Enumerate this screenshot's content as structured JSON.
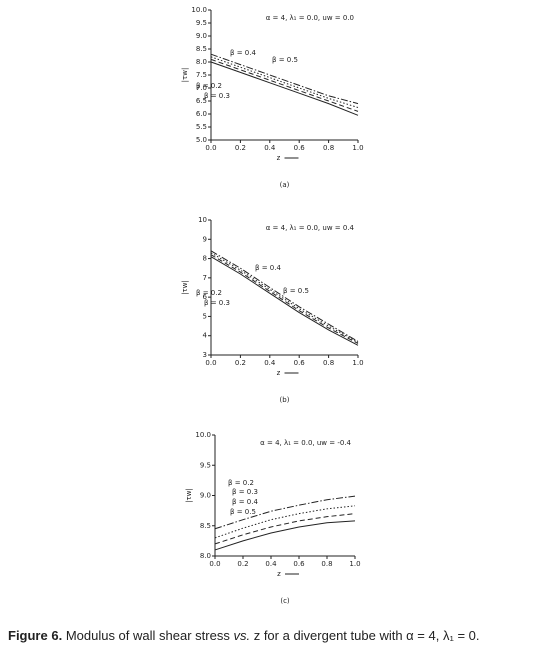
{
  "chart_data": [
    {
      "type": "line",
      "title": "α = 4, λ₁ = 0.0, uw = 0.0",
      "panel_label": "(a)",
      "x_label": "z",
      "y_label": "|τw|",
      "x": [
        0,
        0.2,
        0.4,
        0.6,
        0.8,
        1.0
      ],
      "xlim": [
        0,
        1
      ],
      "xticks": [
        {
          "value": 0,
          "label": "0.0"
        },
        0.2,
        0.4,
        0.6,
        0.8,
        {
          "value": 1,
          "label": "1.0"
        }
      ],
      "ylim": [
        5,
        10
      ],
      "yticks": [
        {
          "value": 5,
          "label": "5.0"
        },
        5.5,
        {
          "value": 6,
          "label": "6.0"
        },
        6.5,
        {
          "value": 7,
          "label": "7.0"
        },
        7.5,
        {
          "value": 8,
          "label": "8.0"
        },
        8.5,
        {
          "value": 9,
          "label": "9.0"
        },
        9.5,
        {
          "value": 10,
          "label": "10.0"
        }
      ],
      "series": [
        {
          "name": "β = 0.2",
          "color": "#222222",
          "values": [
            8.0,
            7.6,
            7.2,
            6.8,
            6.4,
            5.95
          ]
        },
        {
          "name": "β = 0.3",
          "color": "#222222",
          "values": [
            8.1,
            7.7,
            7.3,
            6.9,
            6.5,
            6.1
          ]
        },
        {
          "name": "β = 0.4",
          "color": "#222222",
          "values": [
            8.2,
            7.8,
            7.4,
            7.0,
            6.6,
            6.25
          ]
        },
        {
          "name": "β = 0.5",
          "color": "#222222",
          "values": [
            8.3,
            7.9,
            7.5,
            7.1,
            6.7,
            6.4
          ]
        }
      ]
    },
    {
      "type": "line",
      "title": "α = 4, λ₁ = 0.0, uw = 0.4",
      "panel_label": "(b)",
      "x_label": "z",
      "y_label": "|τw|",
      "x": [
        0,
        0.2,
        0.4,
        0.6,
        0.8,
        1.0
      ],
      "xlim": [
        0,
        1
      ],
      "xticks": [
        {
          "value": 0,
          "label": "0.0"
        },
        0.2,
        0.4,
        0.6,
        0.8,
        {
          "value": 1,
          "label": "1.0"
        }
      ],
      "ylim": [
        3,
        10
      ],
      "yticks": [
        3,
        4,
        5,
        6,
        7,
        8,
        9,
        10
      ],
      "series": [
        {
          "name": "β = 0.2",
          "color": "#222222",
          "values": [
            8.1,
            7.2,
            6.2,
            5.2,
            4.3,
            3.5
          ]
        },
        {
          "name": "β = 0.3",
          "color": "#222222",
          "values": [
            8.2,
            7.3,
            6.3,
            5.3,
            4.4,
            3.6
          ]
        },
        {
          "name": "β = 0.4",
          "color": "#222222",
          "values": [
            8.3,
            7.4,
            6.4,
            5.4,
            4.5,
            3.65
          ]
        },
        {
          "name": "β = 0.5",
          "color": "#222222",
          "values": [
            8.4,
            7.5,
            6.5,
            5.5,
            4.6,
            3.7
          ]
        }
      ]
    },
    {
      "type": "line",
      "title": "α = 4, λ₁ = 0.0, uw = -0.4",
      "panel_label": "(c)",
      "x_label": "z",
      "y_label": "|τw|",
      "x": [
        0,
        0.2,
        0.4,
        0.6,
        0.8,
        1.0
      ],
      "xlim": [
        0,
        1
      ],
      "xticks": [
        {
          "value": 0,
          "label": "0.0"
        },
        0.2,
        0.4,
        0.6,
        0.8,
        {
          "value": 1,
          "label": "1.0"
        }
      ],
      "ylim": [
        8,
        10
      ],
      "yticks": [
        {
          "value": 8,
          "label": "8.0"
        },
        8.5,
        {
          "value": 9,
          "label": "9.0"
        },
        9.5,
        {
          "value": 10,
          "label": "10.0"
        }
      ],
      "series": [
        {
          "name": "β = 0.2",
          "color": "#222222",
          "values": [
            8.1,
            8.25,
            8.38,
            8.48,
            8.55,
            8.58
          ]
        },
        {
          "name": "β = 0.3",
          "color": "#222222",
          "values": [
            8.2,
            8.35,
            8.48,
            8.58,
            8.65,
            8.7
          ]
        },
        {
          "name": "β = 0.4",
          "color": "#222222",
          "values": [
            8.3,
            8.46,
            8.6,
            8.7,
            8.78,
            8.83
          ]
        },
        {
          "name": "β = 0.5",
          "color": "#222222",
          "values": [
            8.45,
            8.6,
            8.74,
            8.84,
            8.93,
            8.99
          ]
        }
      ]
    }
  ],
  "caption": {
    "label": "Figure 6.",
    "text_before": "Modulus of wall shear stress",
    "italic": "vs.",
    "text_after": "z for a divergent tube with α = 4, λ₁ = 0."
  }
}
